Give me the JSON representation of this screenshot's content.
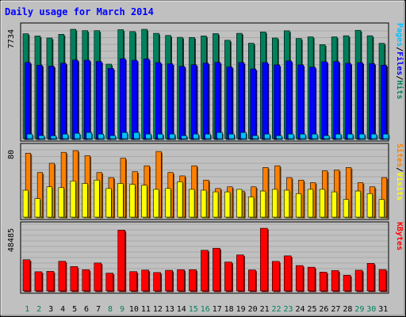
{
  "chart_data": {
    "title": "Daily usage for March 2014",
    "type": "bar",
    "categories": [
      "1",
      "2",
      "3",
      "4",
      "5",
      "6",
      "7",
      "8",
      "9",
      "10",
      "11",
      "12",
      "13",
      "14",
      "15",
      "16",
      "17",
      "18",
      "19",
      "20",
      "21",
      "22",
      "23",
      "24",
      "25",
      "26",
      "27",
      "28",
      "29",
      "30",
      "31"
    ],
    "weekend_days": [
      1,
      2,
      8,
      9,
      15,
      16,
      22,
      23,
      29,
      30
    ],
    "colors": {
      "background": "#C0C0C0",
      "panel": "#FFFFFF",
      "grid": "#A0A0A0",
      "title": "#0000FF",
      "axis_text": "#000000",
      "weekday_label": "#000000",
      "weekend_label": "#00805C",
      "hits": "#00805C",
      "files": "#0000FF",
      "pages": "#00C0FF",
      "visits": "#FFFF00",
      "sites": "#FF8000",
      "kbytes": "#FF0000"
    },
    "panels": [
      {
        "id": "hits-files-pages",
        "max_label": "7734",
        "ylim": [
          0,
          7734
        ],
        "legend": [
          {
            "label": "Hits",
            "color_key": "hits"
          },
          {
            "label": "/",
            "color_key": "axis_text"
          },
          {
            "label": "Files",
            "color_key": "files"
          },
          {
            "label": "/",
            "color_key": "axis_text"
          },
          {
            "label": "Pages",
            "color_key": "pages"
          }
        ],
        "series": [
          {
            "name": "Hits",
            "color_key": "hits",
            "values": [
              7420,
              7260,
              7120,
              7380,
              7734,
              7640,
              7640,
              5270,
              7710,
              7574,
              7734,
              7450,
              7300,
              7170,
              7160,
              7265,
              7430,
              6960,
              7450,
              6750,
              7550,
              7120,
              7630,
              7085,
              7200,
              6650,
              7200,
              7280,
              7665,
              7280,
              6745
            ]
          },
          {
            "name": "Files",
            "color_key": "files",
            "values": [
              5390,
              5200,
              5130,
              5340,
              5560,
              5550,
              5460,
              4970,
              5660,
              5545,
              5640,
              5380,
              5300,
              5120,
              5225,
              5350,
              5400,
              5080,
              5390,
              4930,
              5380,
              5220,
              5500,
              5220,
              5060,
              5440,
              5460,
              5330,
              5380,
              5320,
              5200
            ]
          },
          {
            "name": "Pages",
            "color_key": "pages",
            "values": [
              330,
              220,
              210,
              330,
              380,
              440,
              330,
              220,
              440,
              440,
              330,
              330,
              330,
              220,
              330,
              330,
              440,
              330,
              440,
              220,
              330,
              220,
              330,
              330,
              330,
              220,
              330,
              330,
              330,
              330,
              330
            ]
          }
        ]
      },
      {
        "id": "visits-sites",
        "max_label": "80",
        "ylim": [
          0,
          80
        ],
        "legend": [
          {
            "label": "Visits",
            "color_key": "visits"
          },
          {
            "label": "/",
            "color_key": "axis_text"
          },
          {
            "label": "Sites",
            "color_key": "sites"
          }
        ],
        "series": [
          {
            "name": "Sites",
            "color_key": "sites",
            "values": [
              76,
              53,
              64,
              77,
              79,
              73,
              53,
              47,
              70,
              54,
              61,
              78,
              53,
              49,
              61,
              44,
              34,
              36,
              31,
              36,
              59,
              61,
              47,
              44,
              41,
              55,
              56,
              59,
              41,
              36,
              47
            ]
          },
          {
            "name": "Visits",
            "color_key": "visits",
            "values": [
              32,
              22,
              36,
              35,
              43,
              40,
              44,
              34,
              40,
              39,
              38,
              33,
              34,
              42,
              33,
              32,
              30,
              30,
              33,
              24,
              31,
              33,
              32,
              28,
              33,
              33,
              30,
              21,
              31,
              28,
              21
            ]
          }
        ]
      },
      {
        "id": "kbytes",
        "max_label": "48485",
        "ylim": [
          0,
          48485
        ],
        "legend": [
          {
            "label": "KBytes",
            "color_key": "kbytes"
          }
        ],
        "series": [
          {
            "name": "KBytes",
            "color_key": "kbytes",
            "values": [
              24100,
              14800,
              15100,
              22900,
              18800,
              16400,
              21600,
              13700,
              47000,
              14900,
              16100,
              14200,
              15900,
              16400,
              16400,
              31400,
              33000,
              22300,
              27800,
              16200,
              48485,
              22800,
              27100,
              19600,
              18300,
              14500,
              15700,
              12100,
              16000,
              21300,
              16500
            ]
          }
        ]
      }
    ]
  }
}
